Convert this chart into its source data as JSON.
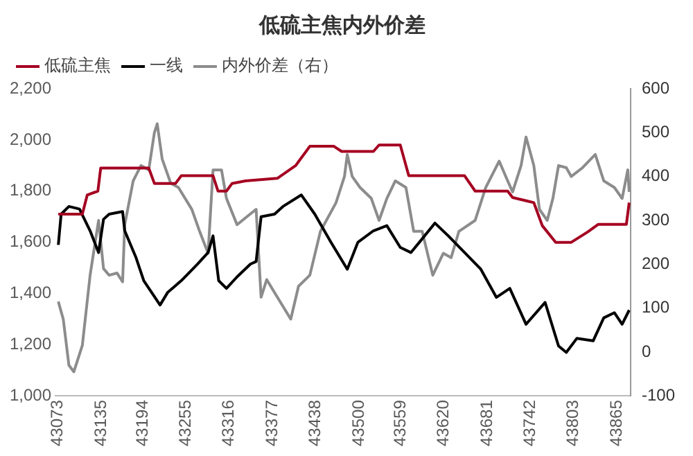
{
  "chart_data": {
    "type": "line",
    "title": "低硫主焦内外价差",
    "xlim": [
      43070,
      43884
    ],
    "xticks": [
      43073,
      43135,
      43194,
      43255,
      43316,
      43377,
      43438,
      43500,
      43559,
      43620,
      43681,
      43742,
      43803,
      43865
    ],
    "ylim": [
      1000,
      2200
    ],
    "yticks": [
      {
        "value": 1000,
        "label": "1,000"
      },
      {
        "value": 1200,
        "label": "1,200"
      },
      {
        "value": 1400,
        "label": "1,400"
      },
      {
        "value": 1600,
        "label": "1,600"
      },
      {
        "value": 1800,
        "label": "1,800"
      },
      {
        "value": 2000,
        "label": "2,000"
      },
      {
        "value": 2200,
        "label": "2,200"
      }
    ],
    "y2lim": [
      -100,
      600
    ],
    "y2ticks": [
      -100,
      0,
      100,
      200,
      300,
      400,
      500,
      600
    ],
    "grid": false,
    "legend": "top",
    "marker": "none",
    "line_style": "solid",
    "series": [
      {
        "name": "低硫主焦",
        "color": "#a50021",
        "x": [
          43074,
          43108,
          43115,
          43130,
          43134,
          43202,
          43210,
          43240,
          43248,
          43293,
          43300,
          43312,
          43320,
          43339,
          43384,
          43410,
          43414,
          43430,
          43464,
          43475,
          43520,
          43528,
          43558,
          43570,
          43649,
          43664,
          43710,
          43717,
          43747,
          43759,
          43778,
          43800,
          43823,
          43838,
          43878,
          43882
        ],
        "values": [
          1710,
          1710,
          1785,
          1800,
          1890,
          1890,
          1830,
          1830,
          1860,
          1860,
          1800,
          1800,
          1830,
          1840,
          1850,
          1900,
          1915,
          1975,
          1975,
          1955,
          1955,
          1980,
          1980,
          1860,
          1860,
          1800,
          1800,
          1775,
          1755,
          1665,
          1600,
          1600,
          1640,
          1670,
          1670,
          1755
        ]
      },
      {
        "name": "一线",
        "color": "#000000",
        "x": [
          43074,
          43078,
          43089,
          43104,
          43119,
          43131,
          43138,
          43146,
          43165,
          43168,
          43184,
          43195,
          43218,
          43229,
          43248,
          43271,
          43286,
          43293,
          43301,
          43312,
          43327,
          43346,
          43354,
          43361,
          43380,
          43392,
          43418,
          43437,
          43460,
          43483,
          43498,
          43520,
          43539,
          43558,
          43573,
          43585,
          43607,
          43626,
          43649,
          43672,
          43694,
          43713,
          43736,
          43763,
          43782,
          43793,
          43808,
          43831,
          43846,
          43861,
          43872,
          43882
        ],
        "values": [
          1590,
          1710,
          1740,
          1730,
          1645,
          1560,
          1690,
          1710,
          1720,
          1645,
          1540,
          1450,
          1355,
          1405,
          1450,
          1515,
          1560,
          1625,
          1450,
          1420,
          1465,
          1515,
          1525,
          1700,
          1710,
          1740,
          1785,
          1710,
          1600,
          1495,
          1600,
          1645,
          1665,
          1580,
          1560,
          1600,
          1675,
          1625,
          1560,
          1495,
          1385,
          1420,
          1280,
          1365,
          1195,
          1170,
          1225,
          1215,
          1305,
          1325,
          1280,
          1335
        ]
      },
      {
        "name": "内外价差（右）",
        "color": "#8c8c8c",
        "axis": "y2",
        "x": [
          43074,
          43081,
          43089,
          43096,
          43108,
          43119,
          43131,
          43138,
          43146,
          43157,
          43165,
          43168,
          43180,
          43191,
          43202,
          43210,
          43214,
          43221,
          43233,
          43244,
          43263,
          43274,
          43286,
          43293,
          43305,
          43312,
          43327,
          43346,
          43354,
          43361,
          43369,
          43384,
          43403,
          43414,
          43430,
          43445,
          43467,
          43479,
          43483,
          43490,
          43501,
          43517,
          43528,
          43539,
          43551,
          43566,
          43577,
          43589,
          43604,
          43619,
          43630,
          43641,
          43664,
          43679,
          43698,
          43710,
          43717,
          43729,
          43736,
          43747,
          43755,
          43766,
          43774,
          43782,
          43793,
          43800,
          43816,
          43834,
          43846,
          43861,
          43872,
          43880,
          43882
        ],
        "values": [
          115,
          75,
          -30,
          -45,
          15,
          175,
          300,
          190,
          175,
          180,
          160,
          290,
          390,
          425,
          415,
          500,
          520,
          440,
          385,
          375,
          325,
          275,
          225,
          415,
          415,
          350,
          290,
          315,
          325,
          125,
          165,
          125,
          75,
          150,
          175,
          275,
          340,
          400,
          450,
          400,
          375,
          350,
          300,
          350,
          390,
          375,
          275,
          275,
          175,
          225,
          215,
          275,
          300,
          375,
          435,
          390,
          365,
          425,
          490,
          425,
          325,
          300,
          350,
          425,
          420,
          400,
          420,
          450,
          390,
          375,
          350,
          415,
          365
        ]
      }
    ]
  }
}
